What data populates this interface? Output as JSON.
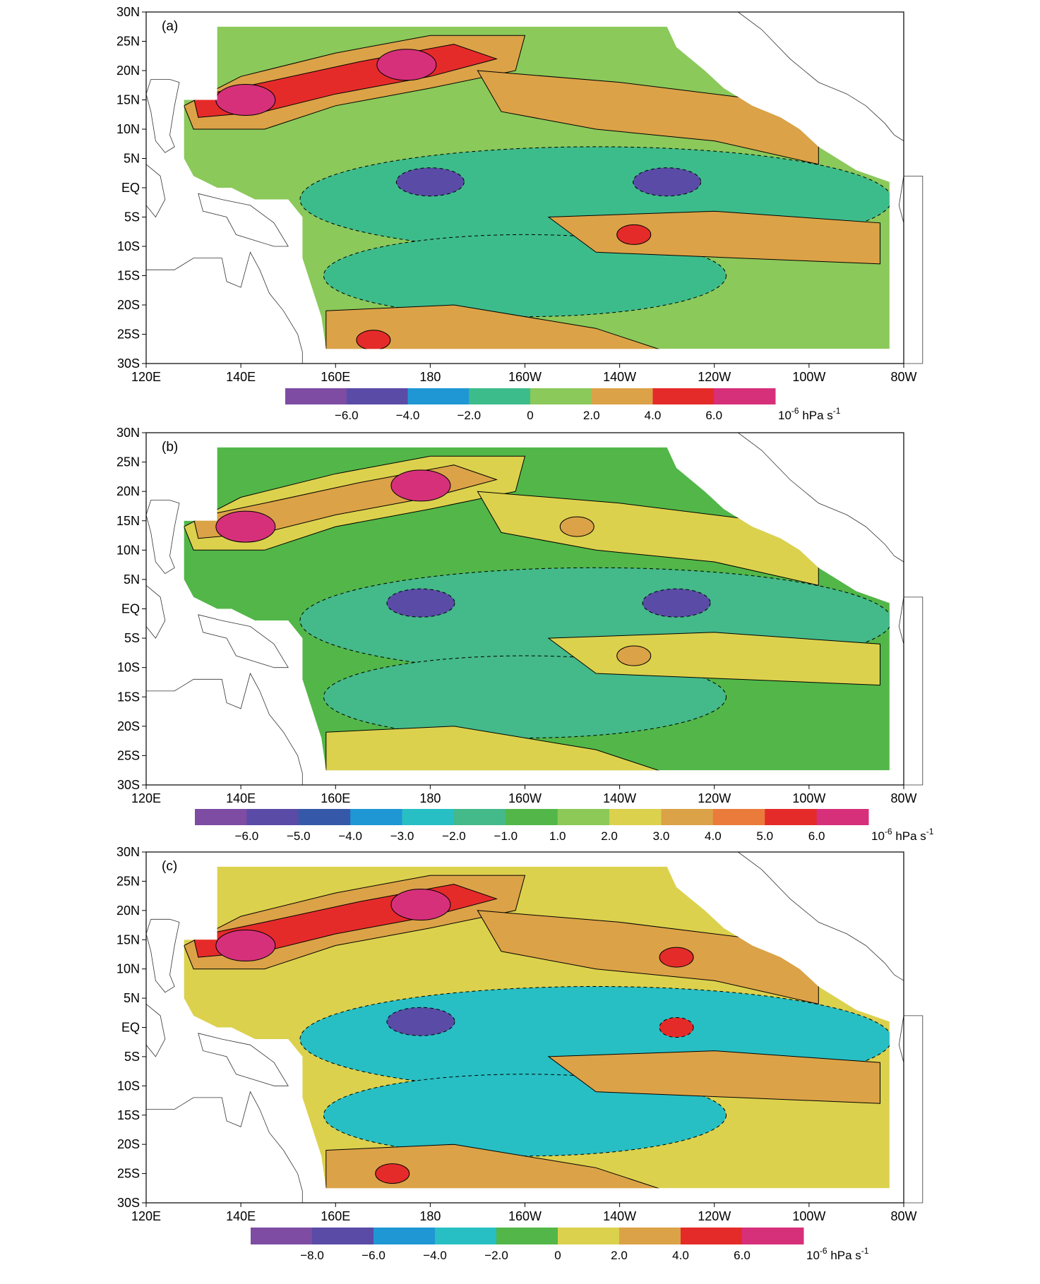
{
  "figure": {
    "lat_labels": [
      "30N",
      "25N",
      "20N",
      "15N",
      "10N",
      "5N",
      "EQ",
      "5S",
      "10S",
      "15S",
      "20S",
      "25S",
      "30S"
    ],
    "lon_labels": [
      "120E",
      "140E",
      "160E",
      "180",
      "160W",
      "140W",
      "120W",
      "100W",
      "80W"
    ],
    "panels": [
      {
        "label": "(a)",
        "colorbar": {
          "colors": [
            "#7e4ca3",
            "#5a4ba6",
            "#1f97d4",
            "#3dbc8b",
            "#8bc95a",
            "#dba247",
            "#e52b2a",
            "#d6307b"
          ],
          "tick_labels": [
            "−6.0",
            "−4.0",
            "−2.0",
            "0",
            "2.0",
            "4.0",
            "6.0"
          ],
          "unit_prefix": "10",
          "unit_exp": "-6",
          "unit_main": " hPa s",
          "unit_exp2": "-1"
        },
        "features": [
          {
            "type": "positive",
            "level": "high",
            "lon": 141,
            "lat": 15
          },
          {
            "type": "positive",
            "level": "high",
            "lon": 175,
            "lat": 21
          },
          {
            "type": "positive",
            "level": "mid",
            "lon": 168,
            "lat": -26
          },
          {
            "type": "negative",
            "level": "strong",
            "lon": 180,
            "lat": 1
          },
          {
            "type": "negative",
            "level": "strong",
            "lon": -130,
            "lat": 1
          },
          {
            "type": "positive",
            "level": "low",
            "lon": -137,
            "lat": -8
          }
        ]
      },
      {
        "label": "(b)",
        "colorbar": {
          "colors": [
            "#7e4ca3",
            "#5a4ba6",
            "#3559a8",
            "#1f97d4",
            "#27bfc4",
            "#44b98a",
            "#52b748",
            "#8cc957",
            "#dcd14d",
            "#dba247",
            "#ea7b3b",
            "#e52b2a",
            "#d6307b"
          ],
          "tick_labels": [
            "−6.0",
            "−5.0",
            "−4.0",
            "−3.0",
            "−2.0",
            "−1.0",
            "1.0",
            "2.0",
            "3.0",
            "4.0",
            "5.0",
            "6.0"
          ],
          "unit_prefix": "10",
          "unit_exp": "-6",
          "unit_main": " hPa s",
          "unit_exp2": "-1"
        },
        "features": [
          {
            "type": "positive",
            "level": "high",
            "lon": 141,
            "lat": 14
          },
          {
            "type": "positive",
            "level": "high",
            "lon": 178,
            "lat": 21
          },
          {
            "type": "negative",
            "level": "strong",
            "lon": 178,
            "lat": 1
          },
          {
            "type": "negative",
            "level": "strong",
            "lon": -128,
            "lat": 1
          },
          {
            "type": "positive",
            "level": "mid",
            "lon": -149,
            "lat": 14
          },
          {
            "type": "positive",
            "level": "mid",
            "lon": -137,
            "lat": -8
          }
        ]
      },
      {
        "label": "(c)",
        "colorbar": {
          "colors": [
            "#7e4ca3",
            "#5a4ba6",
            "#1f97d4",
            "#27bfc4",
            "#52b748",
            "#dcd14d",
            "#dba247",
            "#e52b2a",
            "#d6307b"
          ],
          "tick_labels": [
            "−8.0",
            "−6.0",
            "−4.0",
            "−2.0",
            "0",
            "2.0",
            "4.0",
            "6.0"
          ],
          "unit_prefix": "10",
          "unit_exp": "-6",
          "unit_main": " hPa s",
          "unit_exp2": "-1"
        },
        "features": [
          {
            "type": "positive",
            "level": "high",
            "lon": 141,
            "lat": 14
          },
          {
            "type": "positive",
            "level": "high",
            "lon": 178,
            "lat": 21
          },
          {
            "type": "negative",
            "level": "strong",
            "lon": 178,
            "lat": 1
          },
          {
            "type": "negative",
            "level": "mid",
            "lon": -128,
            "lat": 0
          },
          {
            "type": "positive",
            "level": "mid",
            "lon": 172,
            "lat": -25
          },
          {
            "type": "positive",
            "level": "low",
            "lon": -128,
            "lat": 12
          }
        ]
      }
    ]
  }
}
